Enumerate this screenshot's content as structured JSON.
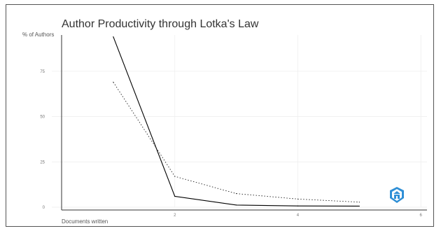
{
  "chart_data": {
    "type": "line",
    "title": "Author Productivity through Lotka's Law",
    "xlabel": "Documents written",
    "ylabel": "% of Authors",
    "xlim": [
      0,
      6.1
    ],
    "ylim": [
      0,
      95
    ],
    "x_ticks": [
      2,
      4,
      6
    ],
    "x_tick_labels": [
      "2",
      "4",
      "6"
    ],
    "y_ticks": [
      0,
      25,
      50,
      75
    ],
    "y_tick_labels": [
      "0",
      "25",
      "50",
      "75"
    ],
    "grid": true,
    "legend": "none",
    "series": [
      {
        "style": "solid",
        "color": "#000000",
        "x": [
          1,
          2,
          3,
          4,
          5
        ],
        "y": [
          94,
          6,
          1.2,
          0.7,
          0.6
        ]
      },
      {
        "style": "dotted",
        "color": "#222222",
        "x": [
          1,
          2,
          3,
          4,
          5
        ],
        "y": [
          69,
          17,
          7.5,
          4.5,
          2.8
        ]
      }
    ]
  },
  "logo": {
    "name": "shield-logo-icon",
    "color": "#2f8fd6"
  }
}
